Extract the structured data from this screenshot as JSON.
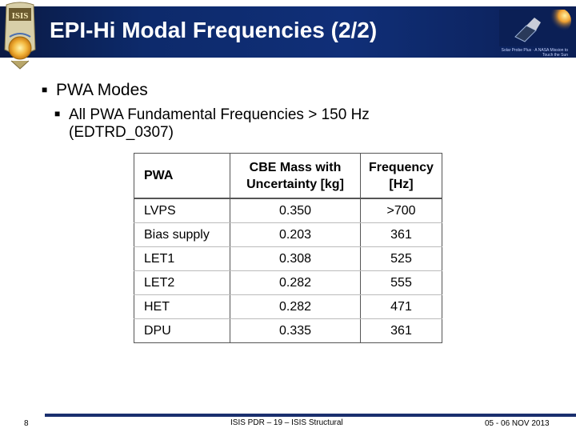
{
  "header": {
    "title": "EPI-Hi Modal Frequencies (2/2)",
    "left_logo_text": "ISIS",
    "right_logo_text": "Solar Probe Plus · A NASA Mission to Touch the Sun",
    "left_logo_icon": "isis-logo-icon",
    "right_logo_icon": "solar-probe-plus-logo-icon"
  },
  "content": {
    "bullet1": "PWA Modes",
    "bullet2_line1": "All PWA Fundamental Frequencies > 150 Hz",
    "bullet2_line2": "(EDTRD_0307)"
  },
  "table": {
    "headers": {
      "name": "PWA",
      "mass_line1": "CBE Mass with",
      "mass_line2": "Uncertainty [kg]",
      "freq_line1": "Frequency",
      "freq_line2": "[Hz]"
    },
    "rows": [
      {
        "name": "LVPS",
        "mass": "0.350",
        "freq": ">700"
      },
      {
        "name": "Bias supply",
        "mass": "0.203",
        "freq": "361"
      },
      {
        "name": "LET1",
        "mass": "0.308",
        "freq": "525"
      },
      {
        "name": "LET2",
        "mass": "0.282",
        "freq": "555"
      },
      {
        "name": "HET",
        "mass": "0.282",
        "freq": "471"
      },
      {
        "name": "DPU",
        "mass": "0.335",
        "freq": "361"
      }
    ]
  },
  "footer": {
    "page": "8",
    "center": "ISIS PDR – 19 – ISIS Structural",
    "date": "05 - 06 NOV 2013"
  },
  "colors": {
    "header_band": "#0d2a6b",
    "footer_rule": "#1a2f6e"
  }
}
